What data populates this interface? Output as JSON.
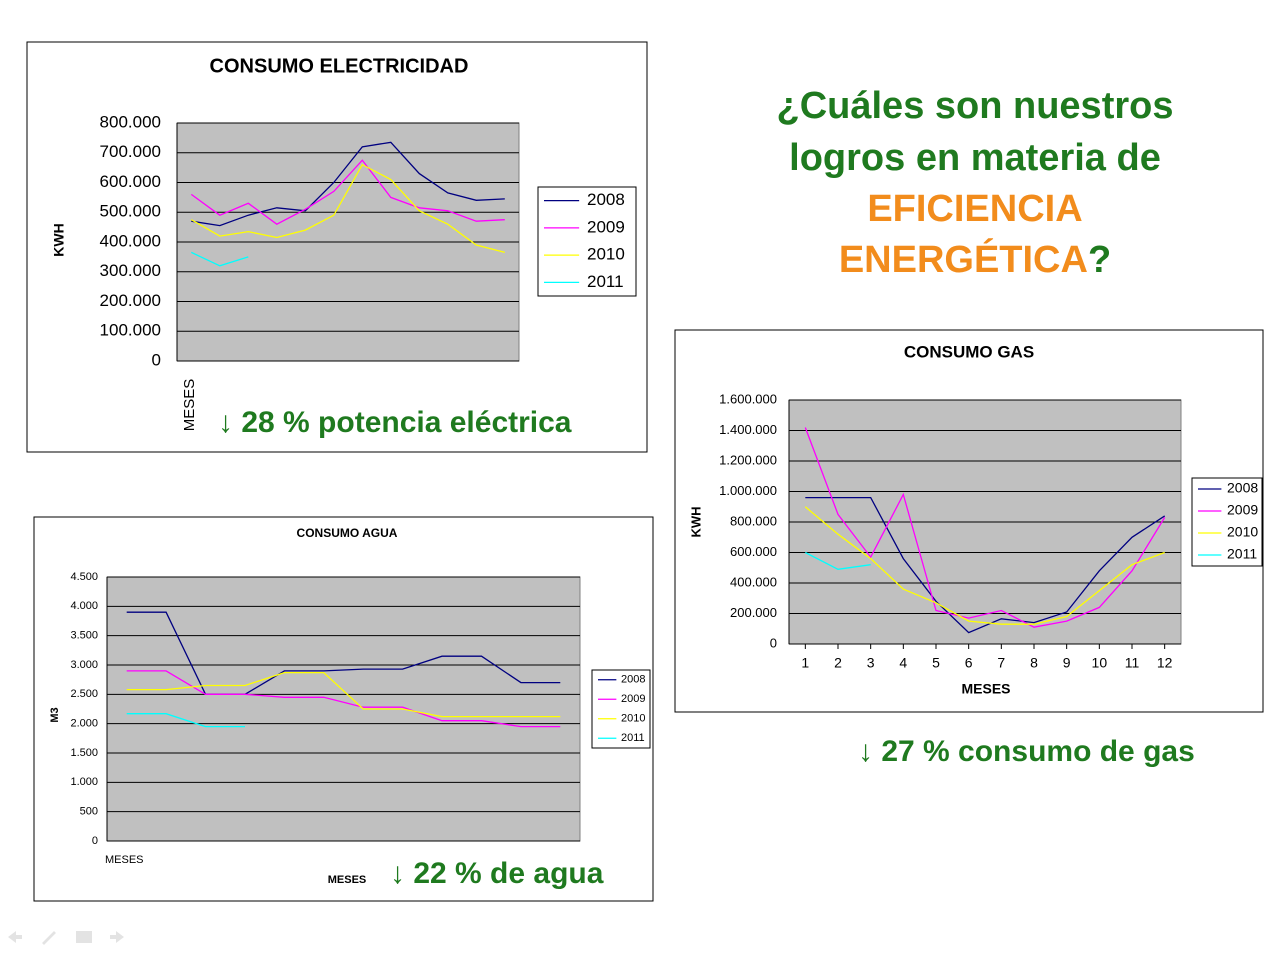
{
  "heading": {
    "lines": [
      "¿Cuáles son nuestros",
      "logros en materia de"
    ],
    "highlight": [
      "EFICIENCIA",
      "ENERGÉTICA"
    ],
    "end": "?"
  },
  "chart_data": [
    {
      "type": "line",
      "title": "CONSUMO ELECTRICIDAD",
      "ylabel": "KWH",
      "xlabel": "MESES",
      "annotation": "↓ 28 % potencia eléctrica",
      "categories": [
        null,
        null,
        null,
        null,
        null,
        null,
        null,
        null,
        null,
        null,
        null,
        null
      ],
      "ylim": [
        0,
        800000
      ],
      "yticks": [
        0,
        {
          "value": 100000,
          "label": "100.000"
        },
        {
          "value": 200000,
          "label": "200.000"
        },
        {
          "value": 300000,
          "label": "300.000"
        },
        {
          "value": 400000,
          "label": "400.000"
        },
        {
          "value": 500000,
          "label": "500.000"
        },
        {
          "value": 600000,
          "label": "600.000"
        },
        {
          "value": 700000,
          "label": "700.000"
        },
        {
          "value": 800000,
          "label": "800.000"
        }
      ],
      "grid": true,
      "legend": "right",
      "series": [
        {
          "name": "2008",
          "color": "#000080",
          "values": [
            470000,
            455000,
            490000,
            515000,
            505000,
            600000,
            720000,
            735000,
            630000,
            565000,
            540000,
            545000
          ]
        },
        {
          "name": "2009",
          "color": "#ff00ff",
          "values": [
            560000,
            490000,
            530000,
            460000,
            510000,
            570000,
            675000,
            550000,
            515000,
            505000,
            470000,
            475000
          ]
        },
        {
          "name": "2010",
          "color": "#ffff00",
          "values": [
            475000,
            420000,
            435000,
            415000,
            440000,
            490000,
            660000,
            610000,
            505000,
            460000,
            390000,
            365000
          ]
        },
        {
          "name": "2011",
          "color": "#00ffff",
          "values": [
            365000,
            320000,
            350000,
            null,
            null,
            null,
            null,
            null,
            null,
            null,
            null,
            null
          ]
        }
      ]
    },
    {
      "type": "line",
      "title": "CONSUMO AGUA",
      "ylabel": "M3",
      "xlabel": "MESES",
      "annotation": "↓ 22 % de agua",
      "categories": [
        "MESES",
        null,
        null,
        null,
        null,
        null,
        null,
        null,
        null,
        null,
        null,
        null
      ],
      "ylim": [
        0,
        4500
      ],
      "yticks": [
        0,
        500,
        {
          "value": 1000,
          "label": "1.000"
        },
        {
          "value": 1500,
          "label": "1.500"
        },
        {
          "value": 2000,
          "label": "2.000"
        },
        {
          "value": 2500,
          "label": "2.500"
        },
        {
          "value": 3000,
          "label": "3.000"
        },
        {
          "value": 3500,
          "label": "3.500"
        },
        {
          "value": 4000,
          "label": "4.000"
        },
        {
          "value": 4500,
          "label": "4.500"
        }
      ],
      "grid": true,
      "legend": "right",
      "series": [
        {
          "name": "2008",
          "color": "#000080",
          "values": [
            3900,
            3900,
            2500,
            2500,
            2900,
            2900,
            2930,
            2930,
            3150,
            3150,
            2700,
            2700
          ]
        },
        {
          "name": "2009",
          "color": "#ff00ff",
          "values": [
            2900,
            2900,
            2500,
            2500,
            2450,
            2450,
            2280,
            2280,
            2050,
            2050,
            1950,
            1950
          ]
        },
        {
          "name": "2010",
          "color": "#ffff00",
          "values": [
            2580,
            2580,
            2650,
            2650,
            2870,
            2870,
            2250,
            2250,
            2120,
            2120,
            2120,
            2120
          ]
        },
        {
          "name": "2011",
          "color": "#00ffff",
          "values": [
            2170,
            2170,
            1950,
            1950,
            null,
            null,
            null,
            null,
            null,
            null,
            null,
            null
          ]
        }
      ]
    },
    {
      "type": "line",
      "title": "CONSUMO GAS",
      "ylabel": "KWH",
      "xlabel": "MESES",
      "annotation": "↓ 27 % consumo de gas",
      "x": [
        1,
        2,
        3,
        4,
        5,
        6,
        7,
        8,
        9,
        10,
        11,
        12
      ],
      "xlim": [
        0.5,
        12.5
      ],
      "xticks": [
        1,
        2,
        3,
        4,
        5,
        6,
        7,
        8,
        9,
        10,
        11,
        12
      ],
      "ylim": [
        0,
        1600000
      ],
      "yticks": [
        0,
        {
          "value": 200000,
          "label": "200.000"
        },
        {
          "value": 400000,
          "label": "400.000"
        },
        {
          "value": 600000,
          "label": "600.000"
        },
        {
          "value": 800000,
          "label": "800.000"
        },
        {
          "value": 1000000,
          "label": "1.000.000"
        },
        {
          "value": 1200000,
          "label": "1.200.000"
        },
        {
          "value": 1400000,
          "label": "1.400.000"
        },
        {
          "value": 1600000,
          "label": "1.600.000"
        }
      ],
      "grid": true,
      "legend": "right",
      "series": [
        {
          "name": "2008",
          "color": "#000080",
          "values": [
            960000,
            960000,
            960000,
            560000,
            280000,
            75000,
            165000,
            140000,
            210000,
            480000,
            700000,
            840000
          ]
        },
        {
          "name": "2009",
          "color": "#ff00ff",
          "values": [
            1420000,
            850000,
            570000,
            980000,
            220000,
            170000,
            220000,
            110000,
            150000,
            240000,
            480000,
            830000
          ]
        },
        {
          "name": "2010",
          "color": "#ffff00",
          "values": [
            900000,
            720000,
            560000,
            360000,
            270000,
            150000,
            130000,
            130000,
            180000,
            350000,
            520000,
            600000
          ]
        },
        {
          "name": "2011",
          "color": "#00ffff",
          "values": [
            600000,
            490000,
            520000,
            null,
            null,
            null,
            null,
            null,
            null,
            null,
            null,
            null
          ]
        }
      ]
    }
  ]
}
